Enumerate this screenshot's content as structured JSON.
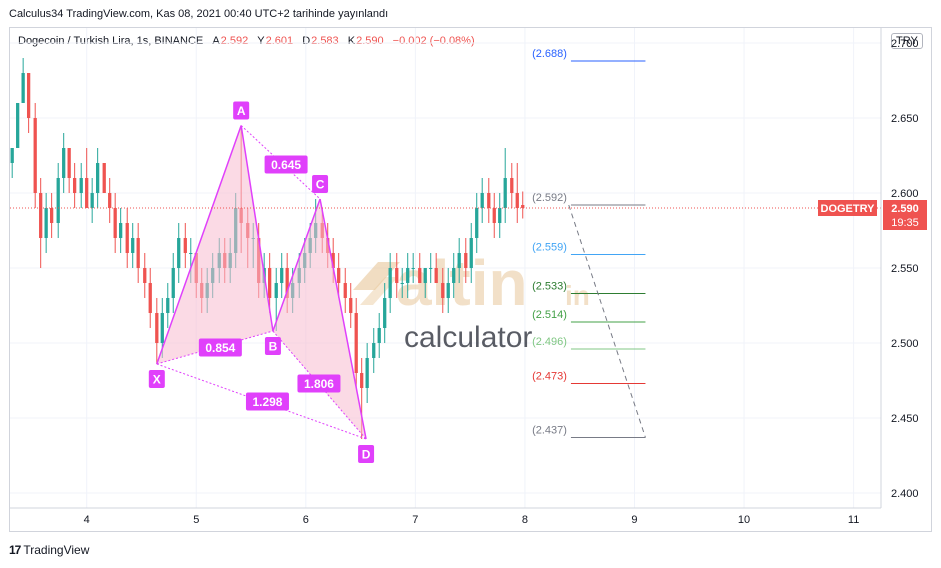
{
  "header": {
    "published": "Calculus34 TradingView.com, Kas 08, 2021 00:40 UTC+2 tarihinde yayınlandı"
  },
  "legend": {
    "symbol": "Dogecoin / Turkish Lira, 1s, BINANCE",
    "open_label": "A",
    "open": "2.592",
    "high_label": "Y",
    "high": "2.601",
    "low_label": "D",
    "low": "2.583",
    "close_label": "K",
    "close": "2.590",
    "change": "−0.002 (−0.08%)"
  },
  "currency": "TRY",
  "footer": {
    "logo_text": "TradingView",
    "logo_mark": "17"
  },
  "watermark": {
    "brand": "altin",
    "brand_suffix": "in",
    "sub": "calculator"
  },
  "chart_data": {
    "type": "candlestick",
    "y_axis": {
      "ticks": [
        "2.700",
        "2.650",
        "2.600",
        "2.550",
        "2.500",
        "2.450",
        "2.400"
      ],
      "range": [
        2.39,
        2.71
      ]
    },
    "x_axis": {
      "ticks": [
        "4",
        "5",
        "6",
        "7",
        "8",
        "9",
        "10",
        "11"
      ],
      "range": [
        3.3,
        11.25
      ]
    },
    "last_price": {
      "symbol": "DOGETRY",
      "value": "2.590",
      "countdown": "19:35",
      "price": 2.59
    },
    "pattern_points": [
      {
        "label": "X",
        "x": 4.64,
        "y": 2.486
      },
      {
        "label": "A",
        "x": 5.41,
        "y": 2.645
      },
      {
        "label": "B",
        "x": 5.7,
        "y": 2.508
      },
      {
        "label": "C",
        "x": 6.13,
        "y": 2.596
      },
      {
        "label": "D",
        "x": 6.55,
        "y": 2.436
      }
    ],
    "ratios": [
      {
        "value": "0.645",
        "x": 5.82,
        "y": 2.619
      },
      {
        "value": "0.854",
        "x": 5.22,
        "y": 2.497
      },
      {
        "value": "1.806",
        "x": 6.12,
        "y": 2.473
      },
      {
        "value": "1.298",
        "x": 5.65,
        "y": 2.461
      }
    ],
    "target_levels": [
      {
        "label": "(2.688)",
        "value": 2.688,
        "color": "#2962ff"
      },
      {
        "label": "(2.592)",
        "value": 2.592,
        "color": "#787b86"
      },
      {
        "label": "(2.559)",
        "value": 2.559,
        "color": "#42a5f5"
      },
      {
        "label": "(2.533)",
        "value": 2.533,
        "color": "#2e7d32"
      },
      {
        "label": "(2.514)",
        "value": 2.514,
        "color": "#43a047"
      },
      {
        "label": "(2.496)",
        "value": 2.496,
        "color": "#81c784"
      },
      {
        "label": "(2.473)",
        "value": 2.473,
        "color": "#e53935"
      },
      {
        "label": "(2.437)",
        "value": 2.437,
        "color": "#787b86"
      }
    ],
    "projection": {
      "from": {
        "x": 8.4,
        "y": 2.592
      },
      "to": {
        "x": 9.1,
        "y": 2.437
      }
    },
    "candles": [
      [
        3.32,
        2.62,
        2.63,
        2.61,
        2.63
      ],
      [
        3.37,
        2.63,
        2.66,
        2.63,
        2.66
      ],
      [
        3.42,
        2.66,
        2.69,
        2.66,
        2.68
      ],
      [
        3.47,
        2.68,
        2.68,
        2.64,
        2.65
      ],
      [
        3.53,
        2.65,
        2.66,
        2.59,
        2.6
      ],
      [
        3.58,
        2.6,
        2.61,
        2.55,
        2.57
      ],
      [
        3.63,
        2.57,
        2.6,
        2.56,
        2.59
      ],
      [
        3.68,
        2.59,
        2.6,
        2.57,
        2.58
      ],
      [
        3.74,
        2.58,
        2.62,
        2.57,
        2.61
      ],
      [
        3.79,
        2.61,
        2.64,
        2.6,
        2.63
      ],
      [
        3.84,
        2.63,
        2.63,
        2.6,
        2.61
      ],
      [
        3.89,
        2.61,
        2.62,
        2.59,
        2.6
      ],
      [
        3.95,
        2.6,
        2.62,
        2.59,
        2.61
      ],
      [
        4.0,
        2.61,
        2.63,
        2.59,
        2.59
      ],
      [
        4.05,
        2.59,
        2.61,
        2.58,
        2.6
      ],
      [
        4.1,
        2.6,
        2.63,
        2.59,
        2.62
      ],
      [
        4.16,
        2.62,
        2.62,
        2.6,
        2.6
      ],
      [
        4.21,
        2.6,
        2.61,
        2.58,
        2.59
      ],
      [
        4.26,
        2.59,
        2.6,
        2.56,
        2.57
      ],
      [
        4.31,
        2.57,
        2.59,
        2.56,
        2.58
      ],
      [
        4.37,
        2.58,
        2.59,
        2.55,
        2.56
      ],
      [
        4.42,
        2.56,
        2.58,
        2.55,
        2.57
      ],
      [
        4.47,
        2.57,
        2.58,
        2.54,
        2.55
      ],
      [
        4.53,
        2.55,
        2.56,
        2.53,
        2.54
      ],
      [
        4.58,
        2.54,
        2.55,
        2.51,
        2.52
      ],
      [
        4.64,
        2.52,
        2.53,
        2.486,
        2.5
      ],
      [
        4.69,
        2.5,
        2.53,
        2.49,
        2.52
      ],
      [
        4.74,
        2.52,
        2.54,
        2.51,
        2.53
      ],
      [
        4.79,
        2.53,
        2.56,
        2.52,
        2.55
      ],
      [
        4.84,
        2.55,
        2.58,
        2.54,
        2.57
      ],
      [
        4.9,
        2.57,
        2.58,
        2.55,
        2.56
      ],
      [
        4.95,
        2.56,
        2.57,
        2.54,
        2.56
      ],
      [
        5.0,
        2.56,
        2.56,
        2.53,
        2.54
      ],
      [
        5.05,
        2.54,
        2.55,
        2.52,
        2.53
      ],
      [
        5.1,
        2.53,
        2.55,
        2.52,
        2.54
      ],
      [
        5.15,
        2.54,
        2.56,
        2.53,
        2.55
      ],
      [
        5.21,
        2.55,
        2.57,
        2.54,
        2.56
      ],
      [
        5.26,
        2.56,
        2.57,
        2.54,
        2.55
      ],
      [
        5.31,
        2.55,
        2.57,
        2.54,
        2.56
      ],
      [
        5.36,
        2.56,
        2.6,
        2.55,
        2.59
      ],
      [
        5.41,
        2.59,
        2.645,
        2.56,
        2.58
      ],
      [
        5.47,
        2.58,
        2.59,
        2.55,
        2.57
      ],
      [
        5.52,
        2.57,
        2.58,
        2.55,
        2.57
      ],
      [
        5.57,
        2.57,
        2.58,
        2.53,
        2.54
      ],
      [
        5.62,
        2.54,
        2.56,
        2.53,
        2.55
      ],
      [
        5.67,
        2.55,
        2.56,
        2.52,
        2.53
      ],
      [
        5.73,
        2.53,
        2.55,
        2.508,
        2.54
      ],
      [
        5.78,
        2.54,
        2.56,
        2.53,
        2.55
      ],
      [
        5.83,
        2.55,
        2.56,
        2.52,
        2.53
      ],
      [
        5.88,
        2.53,
        2.55,
        2.52,
        2.54
      ],
      [
        5.94,
        2.54,
        2.56,
        2.53,
        2.55
      ],
      [
        5.99,
        2.55,
        2.57,
        2.54,
        2.56
      ],
      [
        6.04,
        2.56,
        2.58,
        2.55,
        2.57
      ],
      [
        6.09,
        2.57,
        2.596,
        2.56,
        2.58
      ],
      [
        6.15,
        2.58,
        2.59,
        2.56,
        2.57
      ],
      [
        6.2,
        2.57,
        2.58,
        2.55,
        2.56
      ],
      [
        6.25,
        2.56,
        2.57,
        2.54,
        2.55
      ],
      [
        6.3,
        2.55,
        2.56,
        2.53,
        2.54
      ],
      [
        6.36,
        2.54,
        2.55,
        2.52,
        2.53
      ],
      [
        6.41,
        2.53,
        2.54,
        2.51,
        2.52
      ],
      [
        6.46,
        2.52,
        2.53,
        2.47,
        2.48
      ],
      [
        6.51,
        2.48,
        2.49,
        2.436,
        2.47
      ],
      [
        6.56,
        2.47,
        2.5,
        2.46,
        2.49
      ],
      [
        6.62,
        2.49,
        2.51,
        2.48,
        2.5
      ],
      [
        6.67,
        2.5,
        2.52,
        2.49,
        2.51
      ],
      [
        6.72,
        2.51,
        2.54,
        2.5,
        2.53
      ],
      [
        6.77,
        2.53,
        2.56,
        2.52,
        2.55
      ],
      [
        6.83,
        2.55,
        2.56,
        2.53,
        2.54
      ],
      [
        6.88,
        2.54,
        2.55,
        2.53,
        2.54
      ],
      [
        6.93,
        2.54,
        2.56,
        2.53,
        2.55
      ],
      [
        6.98,
        2.55,
        2.56,
        2.54,
        2.55
      ],
      [
        7.04,
        2.55,
        2.56,
        2.54,
        2.54
      ],
      [
        7.09,
        2.54,
        2.55,
        2.53,
        2.55
      ],
      [
        7.14,
        2.55,
        2.56,
        2.54,
        2.55
      ],
      [
        7.19,
        2.55,
        2.56,
        2.54,
        2.54
      ],
      [
        7.25,
        2.54,
        2.55,
        2.52,
        2.53
      ],
      [
        7.3,
        2.53,
        2.55,
        2.52,
        2.54
      ],
      [
        7.35,
        2.54,
        2.56,
        2.53,
        2.55
      ],
      [
        7.4,
        2.55,
        2.57,
        2.54,
        2.56
      ],
      [
        7.46,
        2.56,
        2.57,
        2.54,
        2.55
      ],
      [
        7.51,
        2.55,
        2.58,
        2.54,
        2.57
      ],
      [
        7.56,
        2.57,
        2.6,
        2.56,
        2.59
      ],
      [
        7.61,
        2.59,
        2.61,
        2.58,
        2.6
      ],
      [
        7.67,
        2.6,
        2.61,
        2.58,
        2.59
      ],
      [
        7.72,
        2.59,
        2.6,
        2.57,
        2.58
      ],
      [
        7.77,
        2.58,
        2.6,
        2.57,
        2.59
      ],
      [
        7.82,
        2.59,
        2.63,
        2.58,
        2.61
      ],
      [
        7.88,
        2.61,
        2.62,
        2.59,
        2.6
      ],
      [
        7.93,
        2.6,
        2.62,
        2.58,
        2.59
      ],
      [
        7.98,
        2.592,
        2.601,
        2.583,
        2.59
      ]
    ]
  }
}
